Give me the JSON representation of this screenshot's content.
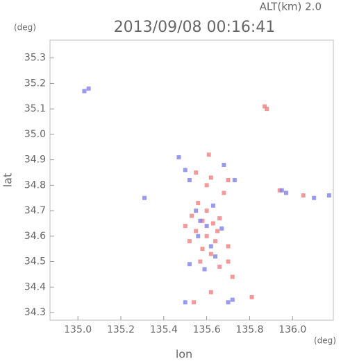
{
  "chart_data": {
    "type": "scatter",
    "title": "2013/09/08 00:16:41",
    "subtitle": "ALT(km) 2.0",
    "x_label": "lon",
    "y_label": "lat",
    "x_unit": "(deg)",
    "y_unit": "(deg)",
    "xlim": [
      134.87,
      136.19
    ],
    "ylim": [
      34.27,
      35.37
    ],
    "xticks": [
      {
        "value": 135.0,
        "label": "135.0"
      },
      135.2,
      135.4,
      135.6,
      135.8,
      {
        "value": 136.0,
        "label": "136.0"
      }
    ],
    "yticks": [
      34.3,
      34.4,
      34.5,
      34.6,
      34.7,
      34.8,
      34.9,
      {
        "value": 35.0,
        "label": "35.0"
      },
      35.1,
      35.2,
      35.3
    ],
    "series": [
      {
        "color": "#f08080",
        "x": [
          135.87,
          135.88,
          135.61,
          135.55,
          135.62,
          135.6,
          135.7,
          135.68,
          135.56,
          135.6,
          135.53,
          135.58,
          135.63,
          135.66,
          135.5,
          135.55,
          135.6,
          135.52,
          135.64,
          135.58,
          135.62,
          135.66,
          135.7,
          135.72,
          135.62,
          135.81,
          135.54,
          136.05,
          135.94,
          135.57,
          135.65,
          135.7
        ],
        "values": [
          35.11,
          35.1,
          34.92,
          34.85,
          34.83,
          34.8,
          34.82,
          34.77,
          34.73,
          34.7,
          34.68,
          34.66,
          34.65,
          34.67,
          34.64,
          34.62,
          34.6,
          34.58,
          34.58,
          34.55,
          34.53,
          34.48,
          34.5,
          34.44,
          34.38,
          34.36,
          34.34,
          34.76,
          34.78,
          34.5,
          34.62,
          34.56
        ]
      },
      {
        "color": "#8080e8",
        "x": [
          135.05,
          135.03,
          135.47,
          135.5,
          135.52,
          135.68,
          135.73,
          135.63,
          135.55,
          135.6,
          135.56,
          135.62,
          135.67,
          135.52,
          135.59,
          135.7,
          135.72,
          135.5,
          135.97,
          135.95,
          136.1,
          136.17,
          135.57,
          135.64,
          135.31
        ],
        "values": [
          35.18,
          35.17,
          34.91,
          34.86,
          34.82,
          34.88,
          34.82,
          34.72,
          34.7,
          34.64,
          34.6,
          34.56,
          34.63,
          34.49,
          34.47,
          34.34,
          34.35,
          34.34,
          34.77,
          34.78,
          34.75,
          34.76,
          34.66,
          34.52,
          34.75
        ]
      }
    ]
  }
}
